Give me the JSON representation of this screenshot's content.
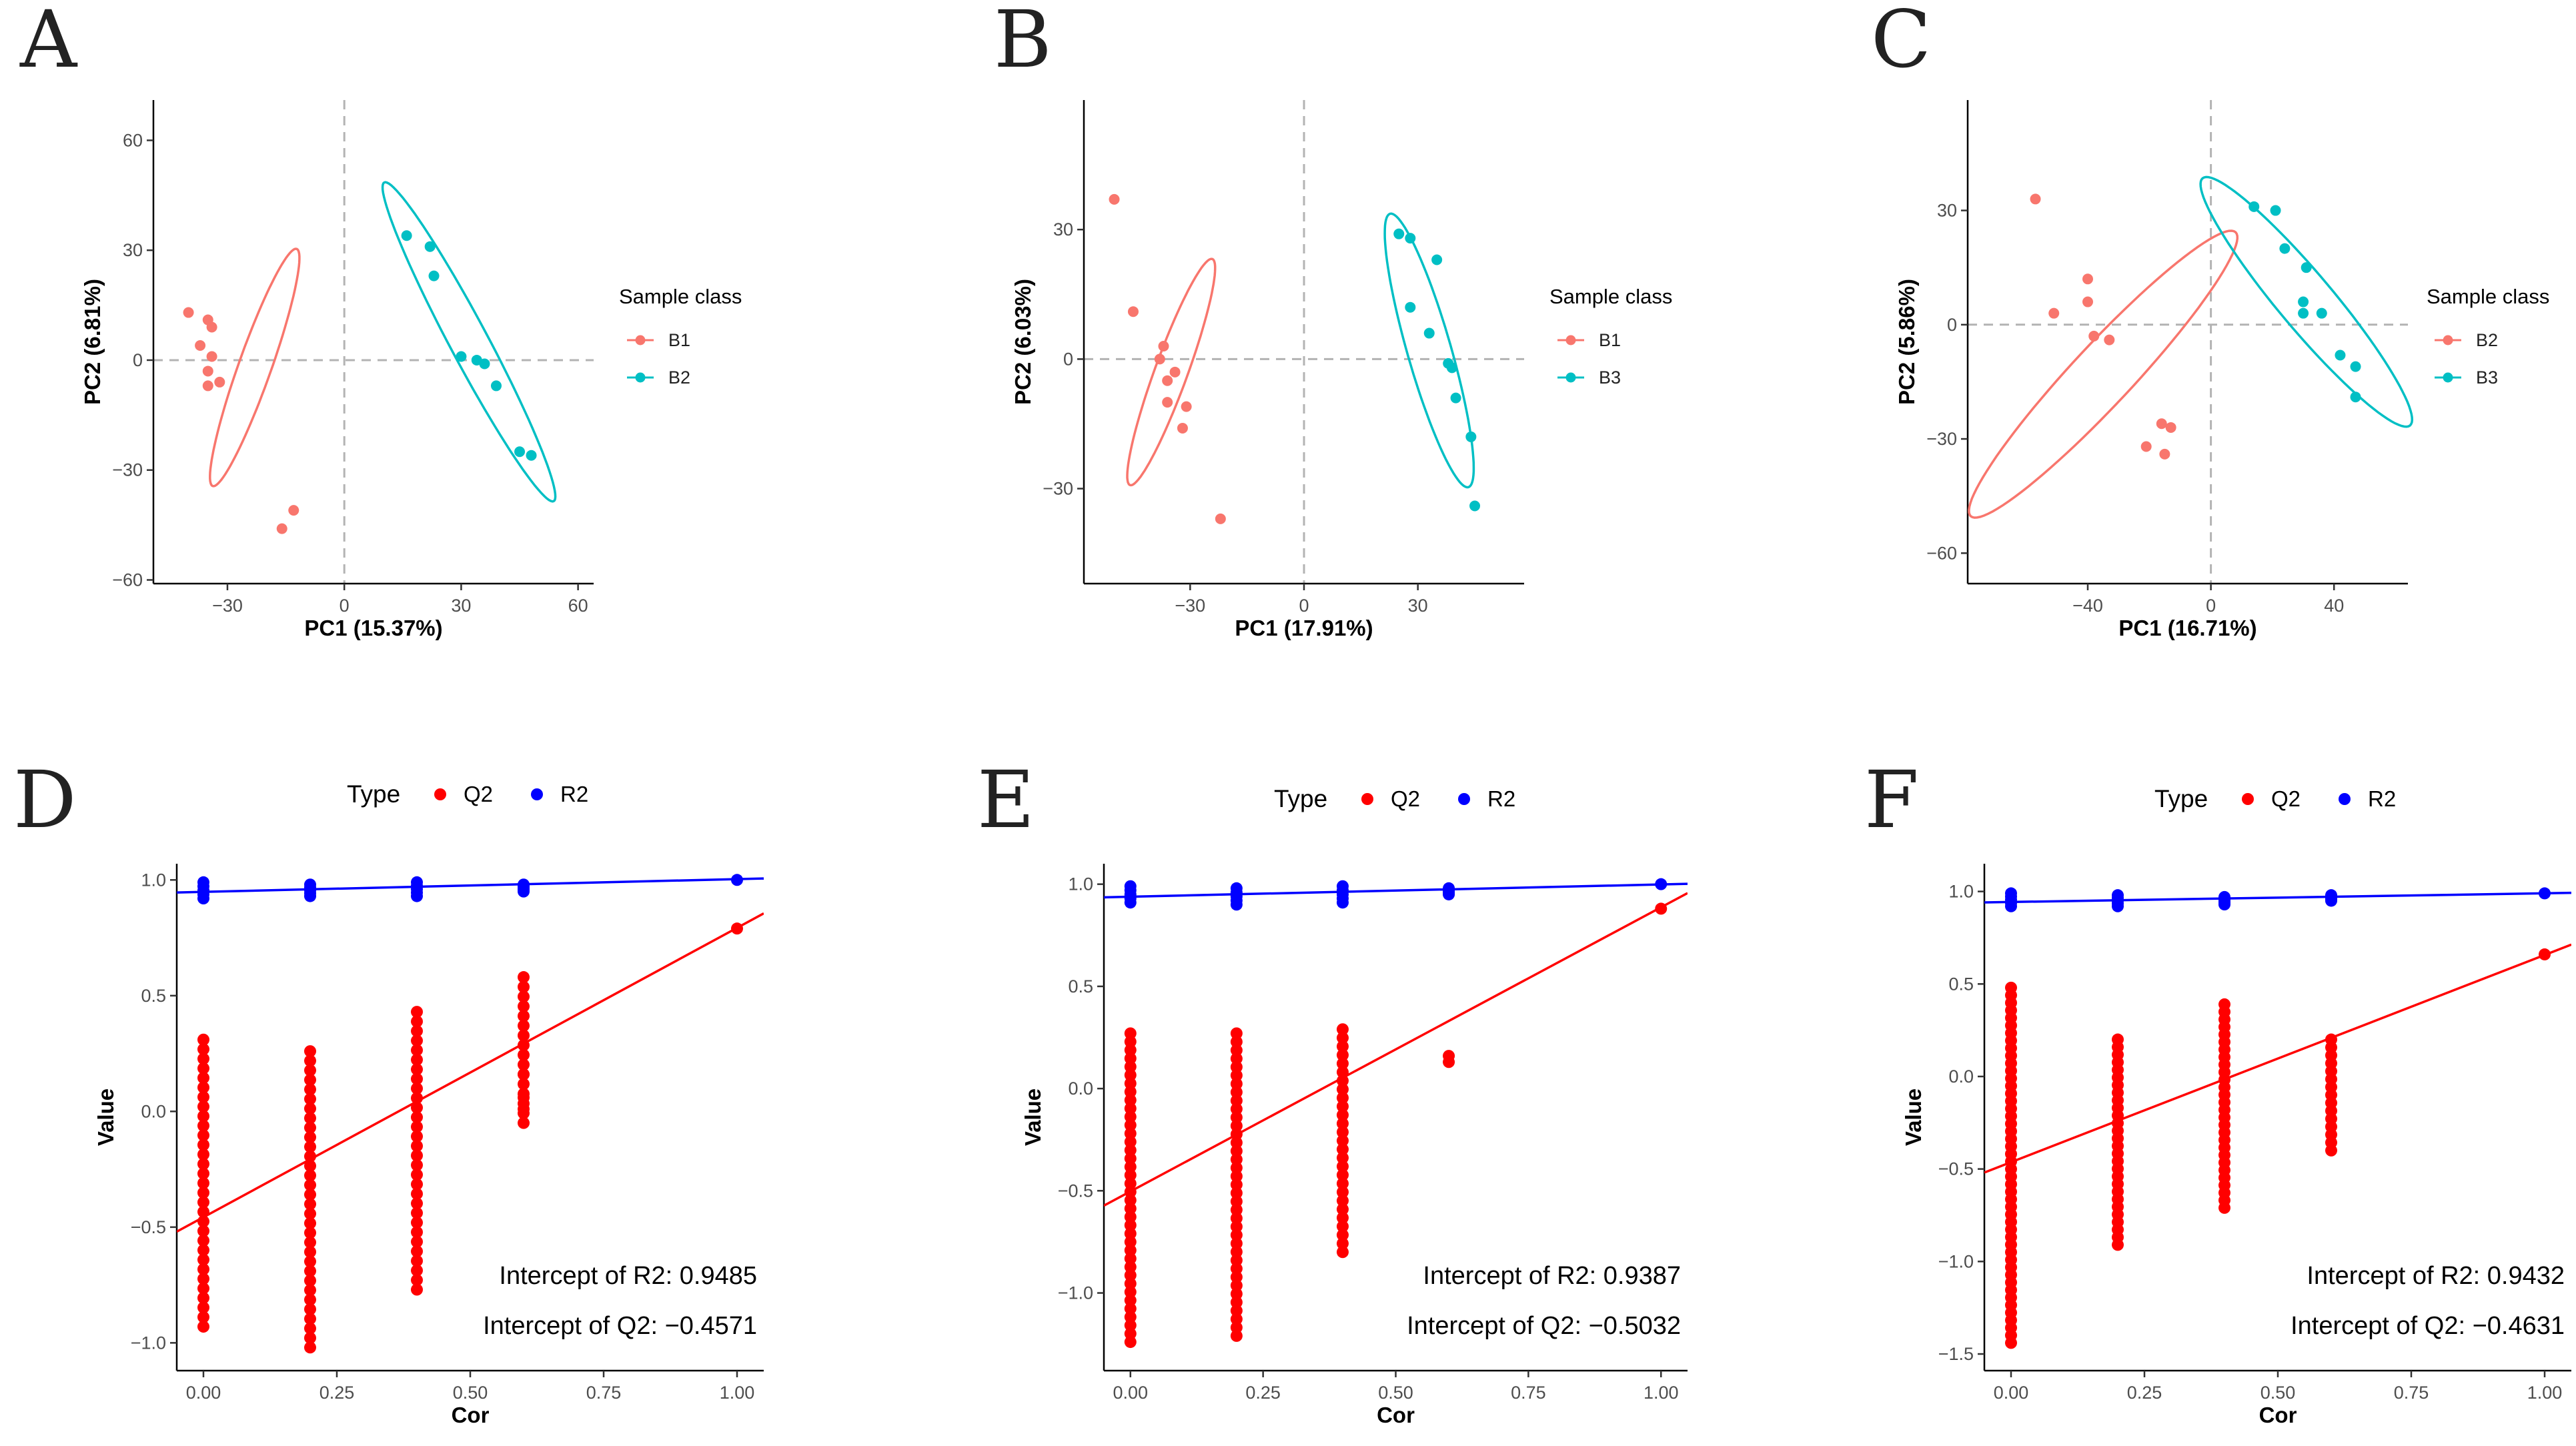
{
  "chart_data": [
    {
      "panel": "A",
      "type": "scatter",
      "xlabel": "PC1 (15.37%)",
      "ylabel": "PC2 (6.81%)",
      "xlim": [
        -49,
        64
      ],
      "ylim": [
        -61,
        71
      ],
      "xticks": [
        -30,
        0,
        30,
        60
      ],
      "yticks": [
        -60,
        -30,
        0,
        30,
        60
      ],
      "legend_title": "Sample class",
      "series": [
        {
          "name": "B1",
          "color": "#F8766D",
          "points": [
            [
              -40,
              13
            ],
            [
              -35,
              11
            ],
            [
              -34,
              9
            ],
            [
              -37,
              4
            ],
            [
              -34,
              1
            ],
            [
              -35,
              -3
            ],
            [
              -35,
              -7
            ],
            [
              -32,
              -6
            ],
            [
              -13,
              -41
            ],
            [
              -16,
              -46
            ]
          ],
          "ellipse": {
            "cx": -23,
            "cy": -2,
            "rx": 46,
            "ry": 6,
            "angle": 70.5
          }
        },
        {
          "name": "B2",
          "color": "#00BFC4",
          "points": [
            [
              16,
              34
            ],
            [
              22,
              31
            ],
            [
              23,
              23
            ],
            [
              30,
              1
            ],
            [
              34,
              0
            ],
            [
              36,
              -1
            ],
            [
              39,
              -7
            ],
            [
              45,
              -25
            ],
            [
              48,
              -26
            ]
          ],
          "ellipse": {
            "cx": 32,
            "cy": 5,
            "rx": 66,
            "ry": 7,
            "angle": -62
          }
        }
      ]
    },
    {
      "panel": "B",
      "type": "scatter",
      "xlabel": "PC1 (17.91%)",
      "ylabel": "PC2 (6.03%)",
      "xlim": [
        -58,
        58
      ],
      "ylim": [
        -52,
        60
      ],
      "xticks": [
        -30,
        0,
        30
      ],
      "yticks": [
        -30,
        0,
        30
      ],
      "legend_title": "Sample class",
      "series": [
        {
          "name": "B1",
          "color": "#F8766D",
          "points": [
            [
              -50,
              37
            ],
            [
              -45,
              11
            ],
            [
              -37,
              3
            ],
            [
              -38,
              0
            ],
            [
              -36,
              -5
            ],
            [
              -34,
              -3
            ],
            [
              -36,
              -10
            ],
            [
              -31,
              -11
            ],
            [
              -32,
              -16
            ],
            [
              -22,
              -37
            ]
          ],
          "ellipse": {
            "cx": -35,
            "cy": -3,
            "rx": 44,
            "ry": 6,
            "angle": 70
          }
        },
        {
          "name": "B3",
          "color": "#00BFC4",
          "points": [
            [
              25,
              29
            ],
            [
              28,
              28
            ],
            [
              35,
              23
            ],
            [
              28,
              12
            ],
            [
              33,
              6
            ],
            [
              38,
              -1
            ],
            [
              39,
              -2
            ],
            [
              40,
              -9
            ],
            [
              44,
              -18
            ],
            [
              45,
              -34
            ]
          ],
          "ellipse": {
            "cx": 33,
            "cy": 2,
            "rx": 52,
            "ry": 8,
            "angle": -74
          }
        }
      ]
    },
    {
      "panel": "C",
      "type": "scatter",
      "xlabel": "PC1 (16.71%)",
      "ylabel": "PC2 (5.86%)",
      "xlim": [
        -79,
        64
      ],
      "ylim": [
        -68,
        59
      ],
      "xticks": [
        -40,
        0,
        40
      ],
      "yticks": [
        -60,
        -30,
        0,
        30
      ],
      "legend_title": "Sample class",
      "series": [
        {
          "name": "B2",
          "color": "#F8766D",
          "points": [
            [
              -57,
              33
            ],
            [
              -51,
              3
            ],
            [
              -40,
              12
            ],
            [
              -40,
              6
            ],
            [
              -38,
              -3
            ],
            [
              -33,
              -4
            ],
            [
              -21,
              -32
            ],
            [
              -16,
              -26
            ],
            [
              -13,
              -27
            ],
            [
              -15,
              -34
            ]
          ],
          "ellipse": {
            "cx": -35,
            "cy": -13,
            "rx": 71,
            "ry": 11,
            "angle": 47
          }
        },
        {
          "name": "B3",
          "color": "#00BFC4",
          "points": [
            [
              14,
              31
            ],
            [
              21,
              30
            ],
            [
              24,
              20
            ],
            [
              30,
              6
            ],
            [
              30,
              3
            ],
            [
              31,
              15
            ],
            [
              36,
              3
            ],
            [
              42,
              -8
            ],
            [
              47,
              -11
            ],
            [
              47,
              -19
            ]
          ],
          "ellipse": {
            "cx": 31,
            "cy": 6,
            "rx": 59,
            "ry": 10,
            "angle": -50
          }
        }
      ]
    },
    {
      "panel": "D",
      "type": "scatter",
      "xlabel": "Cor",
      "ylabel": "Value",
      "xlim": [
        -0.05,
        1.05
      ],
      "ylim": [
        -1.12,
        1.07
      ],
      "xticks": [
        0,
        0.25,
        0.5,
        0.75,
        1
      ],
      "xticklabels": [
        "0.00",
        "0.25",
        "0.50",
        "0.75",
        "1.00"
      ],
      "yticks": [
        -1,
        -0.5,
        0,
        0.5,
        1
      ],
      "yticklabels": [
        "−1.0",
        "−0.5",
        "0.0",
        "0.5",
        "1.0"
      ],
      "legend_title": "Type",
      "legend_items": [
        {
          "name": "Q2",
          "color": "#FF0000"
        },
        {
          "name": "R2",
          "color": "#0000FF"
        }
      ],
      "intercept_r2": 0.9485,
      "intercept_q2": -0.4571,
      "annot_r2": "Intercept of R2: 0.9485",
      "annot_q2": "Intercept of Q2: −0.4571",
      "r2_points": {
        "0": [
          0.92,
          0.99
        ],
        "0.2": [
          0.93,
          0.98
        ],
        "0.4": [
          0.93,
          0.99
        ],
        "0.6": [
          0.95,
          0.98
        ],
        "1": [
          1.0,
          1.0
        ]
      },
      "q2_points": {
        "0": [
          -0.93,
          0.31
        ],
        "0.2": [
          -1.02,
          0.26
        ],
        "0.4": [
          -0.77,
          0.43
        ],
        "0.6": [
          -0.05,
          0.58
        ],
        "1": [
          0.79,
          0.79
        ]
      },
      "q2_extra": [
        [
          0.6,
          0.16
        ],
        [
          0.6,
          0.06
        ],
        [
          0.6,
          0.01
        ]
      ],
      "r2_line": {
        "slope": 0.055,
        "intercept": 0.9485,
        "color": "#0000FF"
      },
      "q2_line": {
        "slope": 1.25,
        "intercept": -0.4571,
        "color": "#FF0000"
      }
    },
    {
      "panel": "E",
      "type": "scatter",
      "xlabel": "Cor",
      "ylabel": "Value",
      "xlim": [
        -0.05,
        1.05
      ],
      "ylim": [
        -1.38,
        1.1
      ],
      "xticks": [
        0,
        0.25,
        0.5,
        0.75,
        1
      ],
      "xticklabels": [
        "0.00",
        "0.25",
        "0.50",
        "0.75",
        "1.00"
      ],
      "yticks": [
        -1,
        -0.5,
        0,
        0.5,
        1
      ],
      "yticklabels": [
        "−1.0",
        "−0.5",
        "0.0",
        "0.5",
        "1.0"
      ],
      "legend_title": "Type",
      "legend_items": [
        {
          "name": "Q2",
          "color": "#FF0000"
        },
        {
          "name": "R2",
          "color": "#0000FF"
        }
      ],
      "intercept_r2": 0.9387,
      "intercept_q2": -0.5032,
      "annot_r2": "Intercept of R2: 0.9387",
      "annot_q2": "Intercept of Q2: −0.5032",
      "r2_points": {
        "0": [
          0.91,
          0.99
        ],
        "0.2": [
          0.9,
          0.98
        ],
        "0.4": [
          0.91,
          0.99
        ],
        "0.6": [
          0.95,
          0.98
        ],
        "1": [
          1.0,
          1.0
        ]
      },
      "q2_points": {
        "0": [
          -1.24,
          0.27
        ],
        "0.2": [
          -1.21,
          0.27
        ],
        "0.4": [
          -0.8,
          0.29
        ],
        "0.6": [
          0.13,
          0.16
        ],
        "1": [
          0.88,
          0.88
        ]
      },
      "q2_extra": [],
      "r2_line": {
        "slope": 0.06,
        "intercept": 0.9387,
        "color": "#0000FF"
      },
      "q2_line": {
        "slope": 1.39,
        "intercept": -0.5032,
        "color": "#FF0000"
      }
    },
    {
      "panel": "F",
      "type": "scatter",
      "xlabel": "Cor",
      "ylabel": "Value",
      "xlim": [
        -0.05,
        1.05
      ],
      "ylim": [
        -1.59,
        1.15
      ],
      "xticks": [
        0,
        0.25,
        0.5,
        0.75,
        1
      ],
      "xticklabels": [
        "0.00",
        "0.25",
        "0.50",
        "0.75",
        "1.00"
      ],
      "yticks": [
        -1.5,
        -1,
        -0.5,
        0,
        0.5,
        1
      ],
      "yticklabels": [
        "−1.5",
        "−1.0",
        "−0.5",
        "0.0",
        "0.5",
        "1.0"
      ],
      "legend_title": "Type",
      "legend_items": [
        {
          "name": "Q2",
          "color": "#FF0000"
        },
        {
          "name": "R2",
          "color": "#0000FF"
        }
      ],
      "intercept_r2": 0.9432,
      "intercept_q2": -0.4631,
      "annot_r2": "Intercept of R2: 0.9432",
      "annot_q2": "Intercept of Q2: −0.4631",
      "r2_points": {
        "0": [
          0.92,
          0.99
        ],
        "0.2": [
          0.92,
          0.98
        ],
        "0.4": [
          0.93,
          0.97
        ],
        "0.6": [
          0.95,
          0.98
        ],
        "1": [
          0.99,
          0.99
        ]
      },
      "q2_points": {
        "0": [
          -1.44,
          0.48
        ],
        "0.2": [
          -0.91,
          0.2
        ],
        "0.4": [
          -0.71,
          0.39
        ],
        "0.6": [
          -0.4,
          0.2
        ],
        "1": [
          0.66,
          0.66
        ]
      },
      "q2_extra": [],
      "r2_line": {
        "slope": 0.047,
        "intercept": 0.9432,
        "color": "#0000FF"
      },
      "q2_line": {
        "slope": 1.12,
        "intercept": -0.4631,
        "color": "#FF0000"
      }
    }
  ]
}
